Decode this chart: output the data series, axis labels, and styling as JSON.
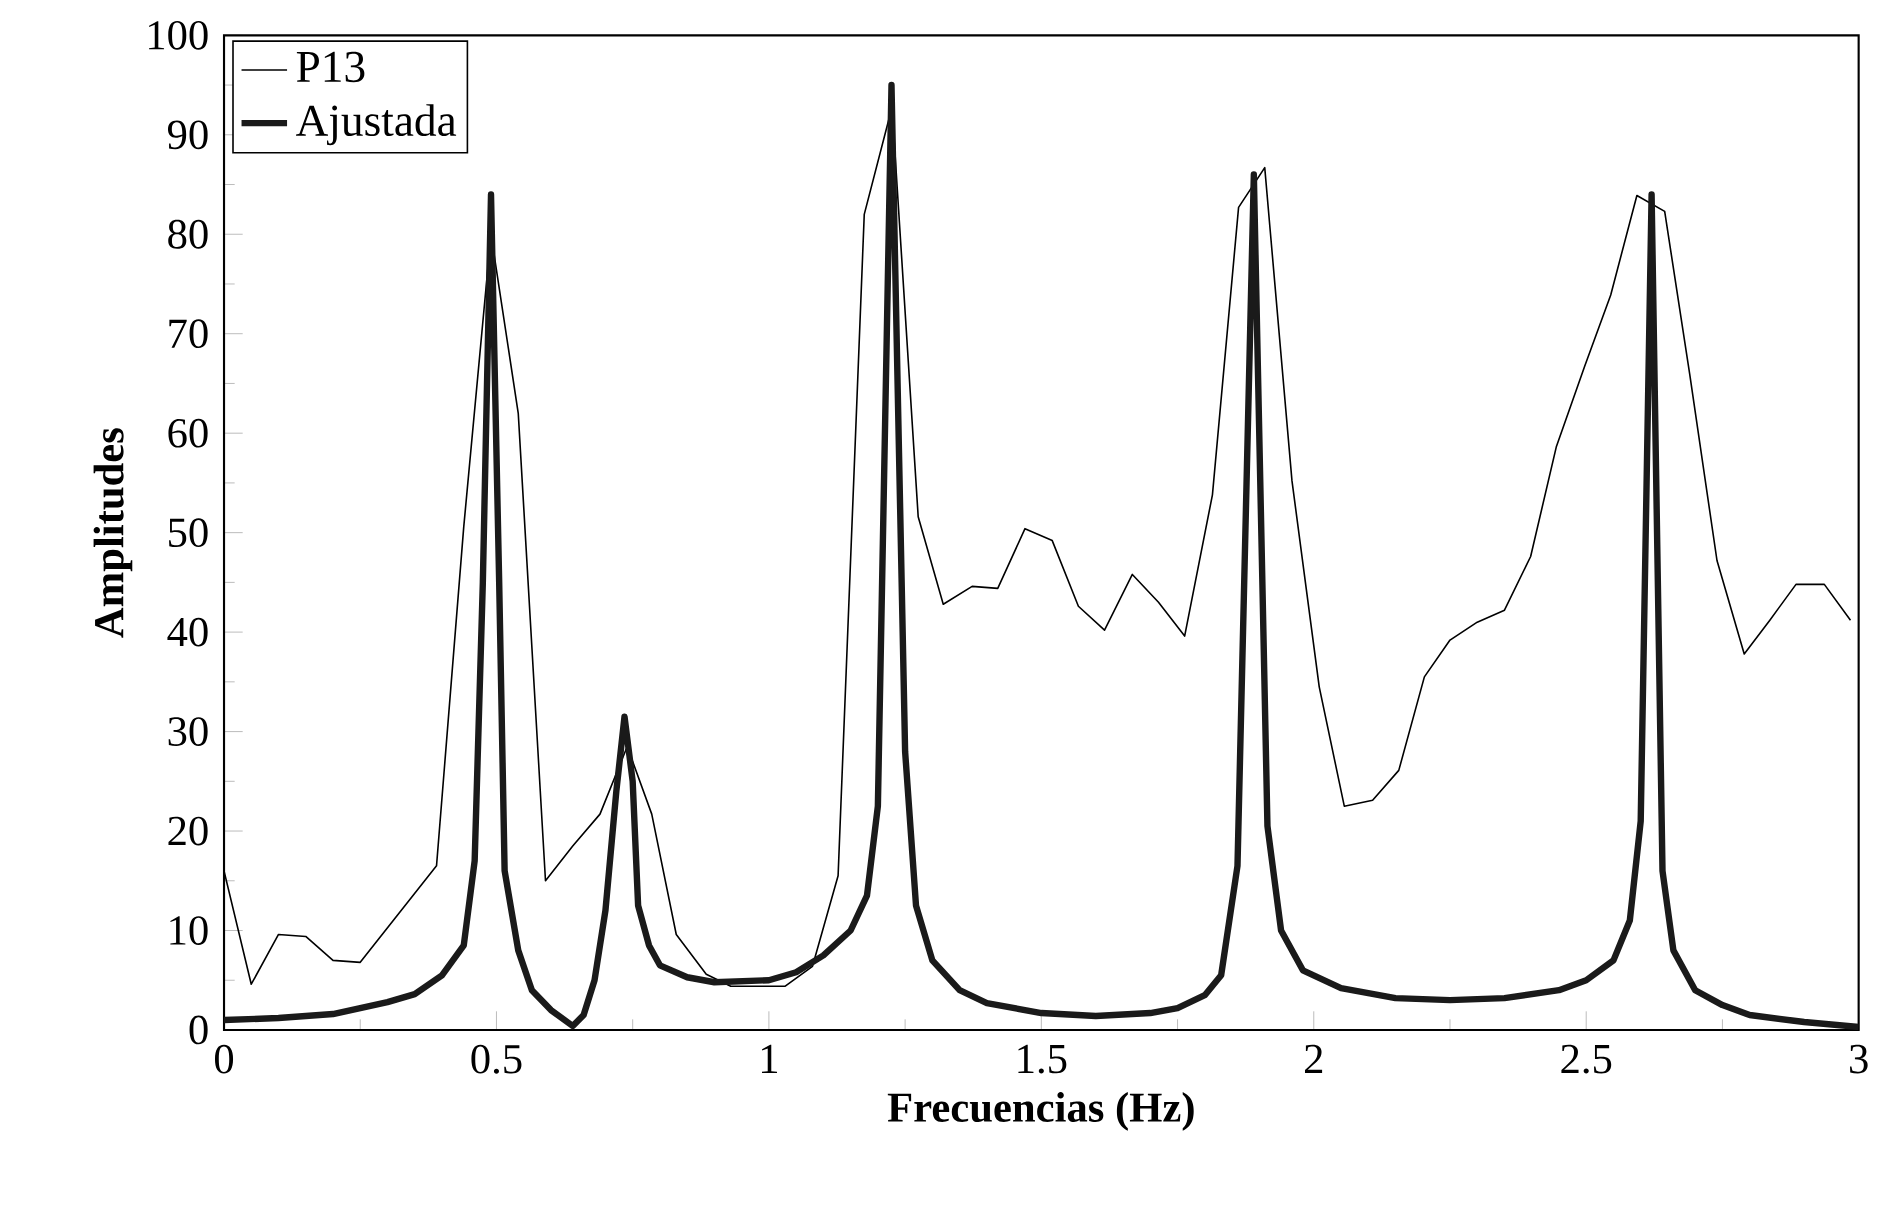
{
  "chart_data": {
    "type": "line",
    "xlabel": "Frecuencias (Hz)",
    "ylabel": "Amplitudes",
    "xlim": [
      0,
      3
    ],
    "ylim": [
      0,
      100
    ],
    "xticks": [
      0,
      0.5,
      1,
      1.5,
      2,
      2.5,
      3
    ],
    "yticks": [
      0,
      10,
      20,
      30,
      40,
      50,
      60,
      70,
      80,
      90,
      100
    ],
    "legend": "top left",
    "grid": false,
    "line_style": "solid",
    "series": [
      {
        "name": "P13",
        "color": "#000000",
        "x": [
          0,
          0.05,
          0.1,
          0.15,
          0.2,
          0.25,
          0.39,
          0.44,
          0.49,
          0.54,
          0.59,
          0.64,
          0.69,
          0.74,
          0.785,
          0.83,
          0.885,
          0.93,
          1.03,
          1.08,
          1.127,
          1.175,
          1.226,
          1.274,
          1.32,
          1.373,
          1.42,
          1.47,
          1.52,
          1.568,
          1.616,
          1.667,
          1.715,
          1.763,
          1.814,
          1.862,
          1.91,
          1.96,
          2.01,
          2.056,
          2.108,
          2.156,
          2.203,
          2.25,
          2.3,
          2.35,
          2.398,
          2.445,
          2.497,
          2.545,
          2.593,
          2.644,
          2.69,
          2.74,
          2.79,
          2.837,
          2.885,
          2.937,
          2.985
        ],
        "values": [
          16,
          4.6,
          9.6,
          9.4,
          7,
          6.8,
          16.5,
          50.6,
          80,
          62,
          15,
          18.5,
          21.7,
          28.5,
          21.7,
          9.6,
          5.6,
          4.4,
          4.4,
          6.4,
          15.5,
          82,
          92.8,
          51.6,
          42.8,
          44.6,
          44.4,
          50.4,
          49.2,
          42.6,
          40.2,
          45.8,
          43,
          39.6,
          53.8,
          82.7,
          86.7,
          55.2,
          34.5,
          22.5,
          23.1,
          26.1,
          35.5,
          39.2,
          41,
          42.2,
          47.6,
          58.6,
          66.7,
          73.9,
          83.9,
          82.3,
          65.9,
          47.2,
          37.8,
          41.2,
          44.8,
          44.8,
          41.2
        ]
      },
      {
        "name": "Ajustada",
        "color": "#1a1a1a",
        "x": [
          0,
          0.1,
          0.2,
          0.3,
          0.35,
          0.4,
          0.44,
          0.46,
          0.475,
          0.49,
          0.505,
          0.515,
          0.54,
          0.565,
          0.6,
          0.64,
          0.66,
          0.68,
          0.7,
          0.72,
          0.735,
          0.75,
          0.76,
          0.78,
          0.8,
          0.85,
          0.9,
          1.0,
          1.05,
          1.1,
          1.15,
          1.18,
          1.2,
          1.225,
          1.25,
          1.27,
          1.3,
          1.35,
          1.4,
          1.5,
          1.6,
          1.7,
          1.75,
          1.8,
          1.83,
          1.86,
          1.89,
          1.915,
          1.94,
          1.98,
          2.05,
          2.15,
          2.25,
          2.35,
          2.45,
          2.5,
          2.55,
          2.58,
          2.6,
          2.62,
          2.64,
          2.66,
          2.7,
          2.75,
          2.8,
          2.9,
          3.0
        ],
        "values": [
          1,
          1.2,
          1.6,
          2.8,
          3.6,
          5.5,
          8.5,
          17,
          45,
          84,
          45,
          16,
          8,
          4,
          2,
          0.4,
          1.5,
          5,
          12,
          24,
          31.5,
          25,
          12.5,
          8.5,
          6.5,
          5.3,
          4.8,
          5,
          5.8,
          7.5,
          10,
          13.5,
          22.5,
          95,
          28,
          12.5,
          7,
          4,
          2.7,
          1.7,
          1.4,
          1.7,
          2.2,
          3.5,
          5.5,
          16.5,
          86,
          20.5,
          10,
          6,
          4.2,
          3.2,
          3,
          3.2,
          4,
          5,
          7,
          11,
          21,
          84,
          16,
          8,
          4,
          2.5,
          1.5,
          0.8,
          0.3
        ]
      }
    ]
  }
}
